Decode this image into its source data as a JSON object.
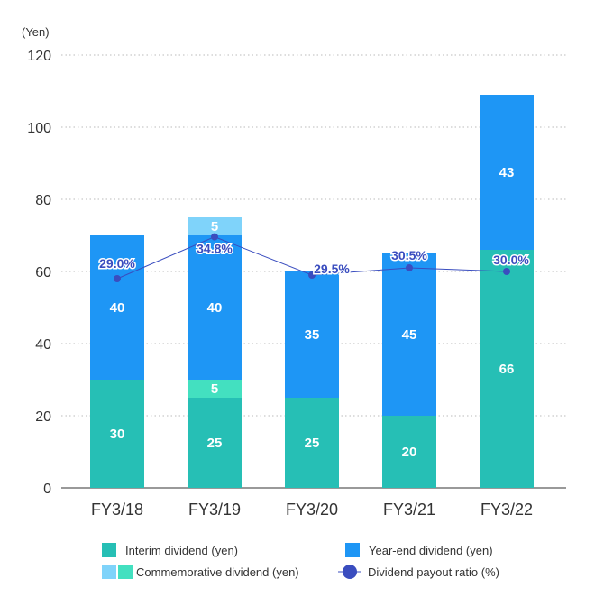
{
  "chart_data": {
    "type": "bar",
    "stacked": true,
    "unit_label": "(Yen)",
    "categories": [
      "FY3/18",
      "FY3/19",
      "FY3/20",
      "FY3/21",
      "FY3/22"
    ],
    "ylim": [
      0,
      120
    ],
    "yticks": [
      0,
      20,
      40,
      60,
      80,
      100,
      120
    ],
    "grid": true,
    "series": [
      {
        "name": "Interim dividend (yen)",
        "key": "interim",
        "values": [
          30,
          25,
          25,
          20,
          66
        ],
        "color": "#26bfb5"
      },
      {
        "name": "Commemorative dividend (yen)",
        "key": "commem_interim",
        "values": [
          0,
          5,
          0,
          0,
          0
        ],
        "color": "#43e0c0"
      },
      {
        "name": "Year-end dividend (yen)",
        "key": "yearend",
        "values": [
          40,
          40,
          35,
          45,
          43
        ],
        "color": "#1e96f5"
      },
      {
        "name": "Commemorative dividend (yen)",
        "key": "commem_yearend",
        "values": [
          0,
          5,
          0,
          0,
          0
        ],
        "color": "#7fd3fa"
      }
    ],
    "payout_ratio": {
      "name": "Dividend payout ratio (%)",
      "values": [
        58,
        69.6,
        59,
        61,
        60
      ],
      "labels": [
        "29.0%",
        "34.8%",
        "29.5%",
        "30.5%",
        "30.0%"
      ],
      "color": "#3a4dbf"
    },
    "legend": {
      "position": "bottom",
      "items": [
        {
          "label": "Interim dividend (yen)",
          "colors": [
            "#26bfb5"
          ],
          "kind": "box"
        },
        {
          "label": "Year-end dividend (yen)",
          "colors": [
            "#1e96f5"
          ],
          "kind": "box"
        },
        {
          "label": "Commemorative dividend (yen)",
          "colors": [
            "#7fd3fa",
            "#43e0c0"
          ],
          "kind": "box"
        },
        {
          "label": "Dividend payout ratio (%)",
          "colors": [
            "#3a4dbf"
          ],
          "kind": "line-marker"
        }
      ]
    }
  }
}
